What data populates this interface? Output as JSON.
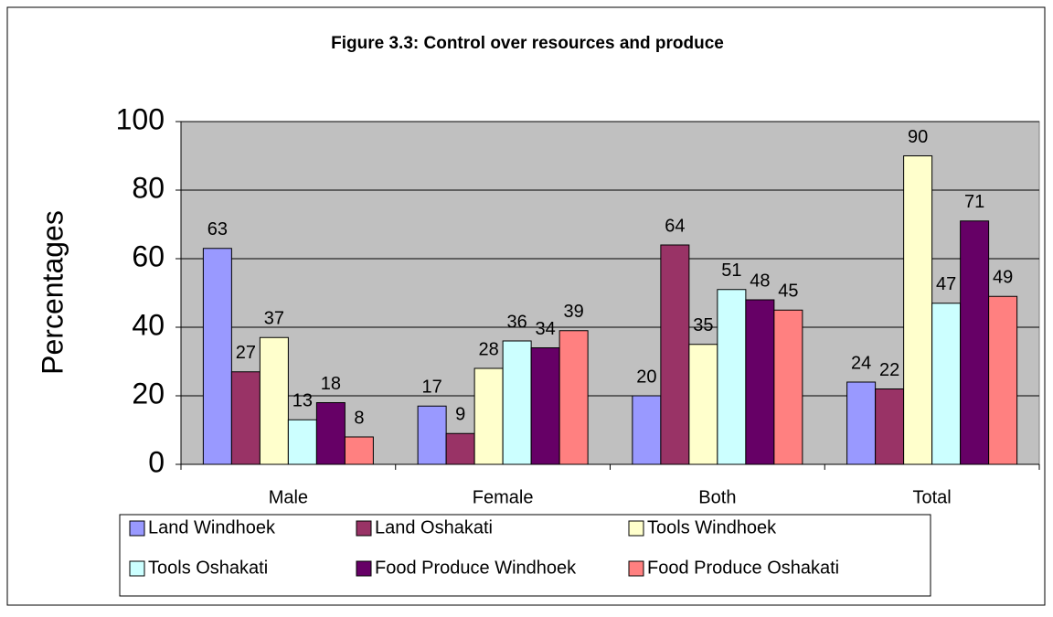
{
  "chart_data": {
    "type": "bar",
    "title": "Figure 3.3:  Control over resources and produce",
    "y_label": "Percentages",
    "categories": [
      "Male",
      "Female",
      "Both",
      "Total"
    ],
    "series": [
      {
        "name": "Land Windhoek",
        "color": "#9999ff",
        "values": [
          63,
          17,
          20,
          24
        ]
      },
      {
        "name": "Land Oshakati",
        "color": "#993366",
        "values": [
          27,
          9,
          64,
          22
        ]
      },
      {
        "name": "Tools Windhoek",
        "color": "#ffffcc",
        "values": [
          37,
          28,
          35,
          90
        ]
      },
      {
        "name": "Tools Oshakati",
        "color": "#ccffff",
        "values": [
          13,
          36,
          51,
          47
        ]
      },
      {
        "name": "Food Produce Windhoek",
        "color": "#660066",
        "values": [
          18,
          34,
          48,
          71
        ]
      },
      {
        "name": "Food Produce Oshakati",
        "color": "#ff8080",
        "values": [
          8,
          39,
          45,
          49
        ]
      }
    ],
    "ylim": [
      0,
      100
    ],
    "yticks": [
      0,
      20,
      40,
      60,
      80,
      100
    ],
    "grid": true,
    "legend": "bottom"
  }
}
